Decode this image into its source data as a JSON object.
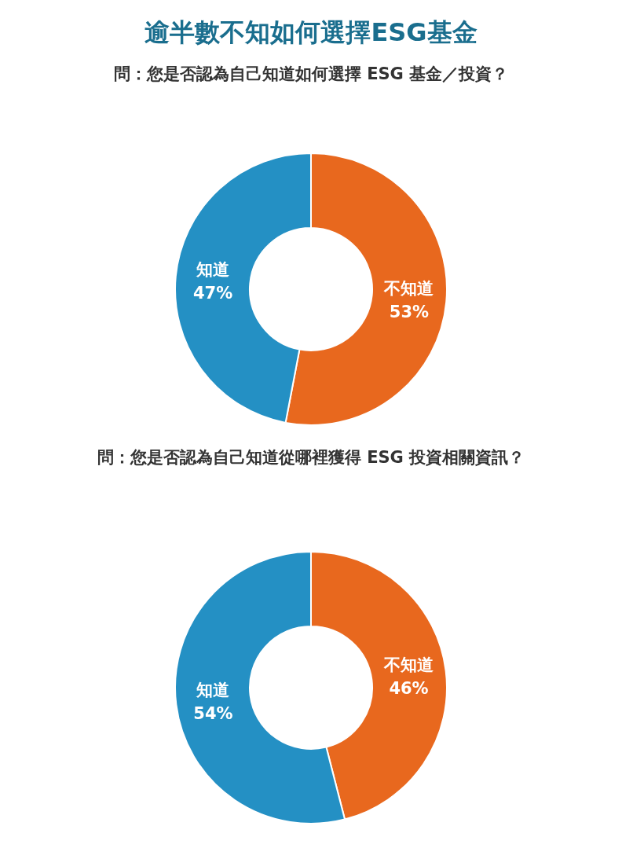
{
  "chart_data": [
    {
      "type": "donut",
      "title": "逾半數不知如何選擇ESG基金",
      "subtitle": "問：您是否認為自己知道如何選擇 ESG 基金／投資？",
      "categories": [
        "不知道",
        "知道"
      ],
      "values": [
        53,
        47
      ],
      "value_labels": [
        "53%",
        "47%"
      ],
      "colors": [
        "#e8681e",
        "#2490c4"
      ],
      "legend": false
    },
    {
      "type": "donut",
      "subtitle": "問：您是否認為自己知道從哪裡獲得 ESG 投資相關資訊？",
      "categories": [
        "不知道",
        "知道"
      ],
      "values": [
        46,
        54
      ],
      "value_labels": [
        "46%",
        "54%"
      ],
      "colors": [
        "#e8681e",
        "#2490c4"
      ],
      "legend": false
    }
  ]
}
